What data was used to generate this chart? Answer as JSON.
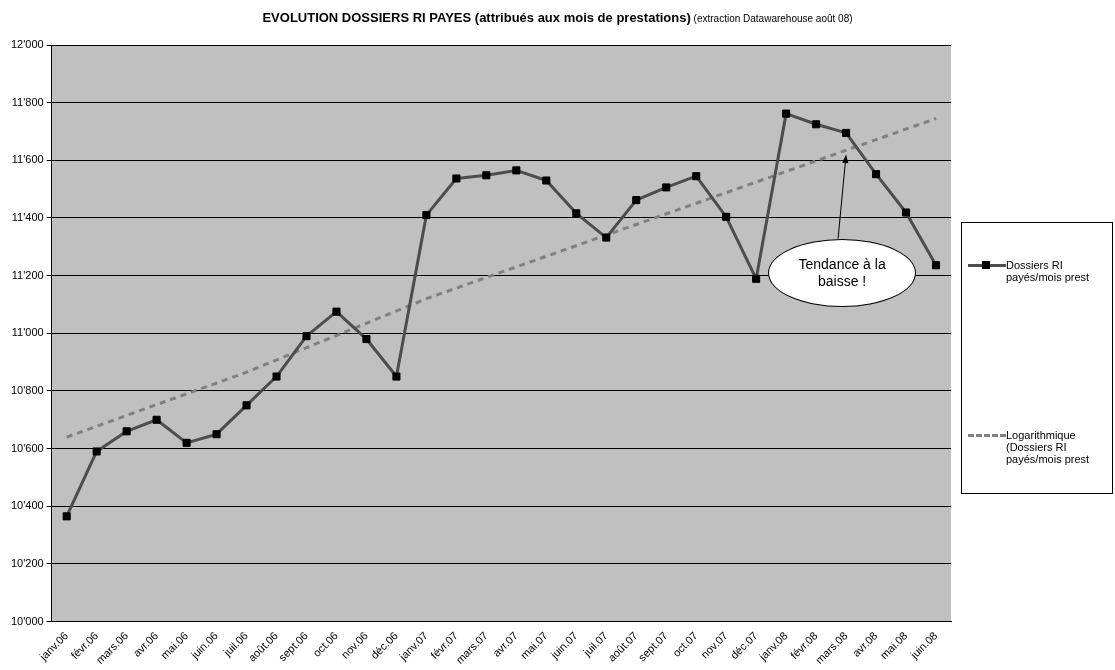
{
  "chart_data": {
    "type": "line",
    "title": "EVOLUTION DOSSIERS RI PAYES (attribués aux mois de prestations)",
    "subtitle": "(extraction Datawarehouse août 08)",
    "categories": [
      "janv.06",
      "févr.06",
      "mars.06",
      "avr.06",
      "mai.06",
      "juin.06",
      "juil.06",
      "août.06",
      "sept.06",
      "oct.06",
      "nov.06",
      "déc.06",
      "janv.07",
      "févr.07",
      "mars.07",
      "avr.07",
      "mai.07",
      "juin.07",
      "juil.07",
      "août.07",
      "sept.07",
      "oct.07",
      "nov.07",
      "déc.07",
      "janv.08",
      "févr.08",
      "mars.08",
      "avr.08",
      "mai.08",
      "juin.08"
    ],
    "series": [
      {
        "name": "Dossiers RI payés/mois prest",
        "color": "#4d4d4d",
        "marker": "square",
        "line_style": "solid",
        "values": [
          10365,
          10590,
          10660,
          10700,
          10620,
          10650,
          10750,
          10850,
          10990,
          11075,
          10980,
          10850,
          11410,
          11537,
          11548,
          11565,
          11530,
          11416,
          11332,
          11462,
          11506,
          11545,
          11404,
          11189,
          11762,
          11725,
          11695,
          11552,
          11419,
          11236
        ]
      },
      {
        "name": "Logarithmique (Dossiers RI payés/mois prest",
        "type": "line",
        "color": "#808080",
        "marker": "none",
        "line_style": "dashed",
        "x": [
          "janv.06",
          "juil.06",
          "janv.07",
          "juin.08"
        ],
        "values": [
          10640,
          10865,
          11120,
          11745
        ]
      }
    ],
    "ylim": [
      10000,
      12000
    ],
    "yticks": [
      {
        "value": 10000,
        "label": "10'000"
      },
      {
        "value": 10200,
        "label": "10'200"
      },
      {
        "value": 10400,
        "label": "10'400"
      },
      {
        "value": 10600,
        "label": "10'600"
      },
      {
        "value": 10800,
        "label": "10'800"
      },
      {
        "value": 11000,
        "label": "11'000"
      },
      {
        "value": 11200,
        "label": "11'200"
      },
      {
        "value": 11400,
        "label": "11'400"
      },
      {
        "value": 11600,
        "label": "11'600"
      },
      {
        "value": 11800,
        "label": "11'800"
      },
      {
        "value": 12000,
        "label": "12'000"
      }
    ],
    "grid": "y",
    "legend": "right",
    "annotations": [
      {
        "text": "Tendance à la baisse !",
        "x": "mars.08",
        "y": 11620
      }
    ]
  }
}
